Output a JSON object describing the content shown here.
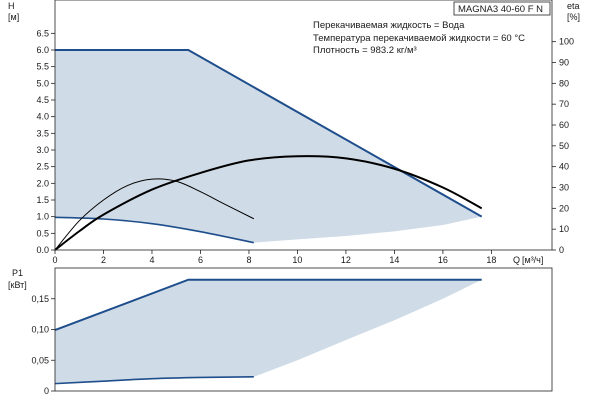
{
  "title": "MAGNA3 40-60 F N",
  "info_lines": [
    "Перекачиваемая жидкость = Вода",
    "Температура перекачиваемой жидкости = 60 °C",
    "Плотность = 983.2 кг/м³"
  ],
  "colors": {
    "envelope_fill": "#cfdbe6",
    "envelope_line": "#1f4e8c",
    "duty_curve": "#000000",
    "frame": "#222222"
  },
  "chart_data": [
    {
      "type": "area",
      "panel": "head",
      "ylabel": "H",
      "yunit": "[м]",
      "y2label": "eta",
      "y2unit": "[%]",
      "xlabel": "Q",
      "xunit": "[м³/ч]",
      "xlim": [
        0,
        20.5
      ],
      "ylim": [
        0,
        7.5
      ],
      "y2lim": [
        0,
        120
      ],
      "xticks": [
        "0",
        "2",
        "4",
        "6",
        "8",
        "10",
        "12",
        "14",
        "16",
        "18"
      ],
      "yticks": [
        "0.0",
        "0.5",
        "1.0",
        "1.5",
        "2.0",
        "2.5",
        "3.0",
        "3.5",
        "4.0",
        "4.5",
        "5.0",
        "5.5",
        "6.0",
        "6.5"
      ],
      "y2ticks": [
        "0",
        "10",
        "20",
        "30",
        "40",
        "50",
        "60",
        "70",
        "80",
        "90",
        "100"
      ],
      "series": [
        {
          "role": "envelope-max",
          "x": [
            0,
            5.5,
            17.6
          ],
          "y": [
            6.0,
            6.0,
            1.0
          ]
        },
        {
          "role": "envelope-min",
          "x": [
            0,
            2,
            4,
            6,
            8.2
          ],
          "y": [
            0.98,
            0.93,
            0.79,
            0.55,
            0.22
          ]
        },
        {
          "role": "envelope-lower-boundary",
          "x": [
            8.2,
            10,
            12,
            14,
            16,
            17.6
          ],
          "y": [
            0.22,
            0.32,
            0.42,
            0.56,
            0.75,
            1.0
          ]
        },
        {
          "role": "eta-max",
          "x": [
            0,
            1,
            2,
            4,
            6,
            8,
            10,
            12,
            14,
            16,
            17.6
          ],
          "y": [
            0,
            9,
            17,
            29,
            37,
            43,
            45,
            44,
            39,
            30,
            20
          ]
        },
        {
          "role": "eta-min",
          "x": [
            0,
            1,
            2,
            3,
            4,
            5,
            6,
            7,
            8.2
          ],
          "y": [
            0,
            14,
            24,
            31,
            34,
            33,
            28,
            22,
            15
          ]
        }
      ]
    },
    {
      "type": "area",
      "panel": "power",
      "ylabel": "P1",
      "yunit": "[кВт]",
      "xlim": [
        0,
        20.5
      ],
      "ylim": [
        0,
        0.2
      ],
      "yticks": [
        "0",
        "0,05",
        "0,10",
        "0,15"
      ],
      "series": [
        {
          "role": "envelope-max",
          "x": [
            0,
            5.5,
            17.6
          ],
          "y": [
            0.099,
            0.181,
            0.181
          ]
        },
        {
          "role": "envelope-min",
          "x": [
            0,
            2,
            4,
            6,
            8.2
          ],
          "y": [
            0.012,
            0.016,
            0.02,
            0.022,
            0.023
          ]
        },
        {
          "role": "envelope-lower-boundary",
          "x": [
            8.2,
            10,
            12,
            14,
            16,
            17.6
          ],
          "y": [
            0.023,
            0.05,
            0.083,
            0.115,
            0.15,
            0.181
          ]
        }
      ]
    }
  ]
}
